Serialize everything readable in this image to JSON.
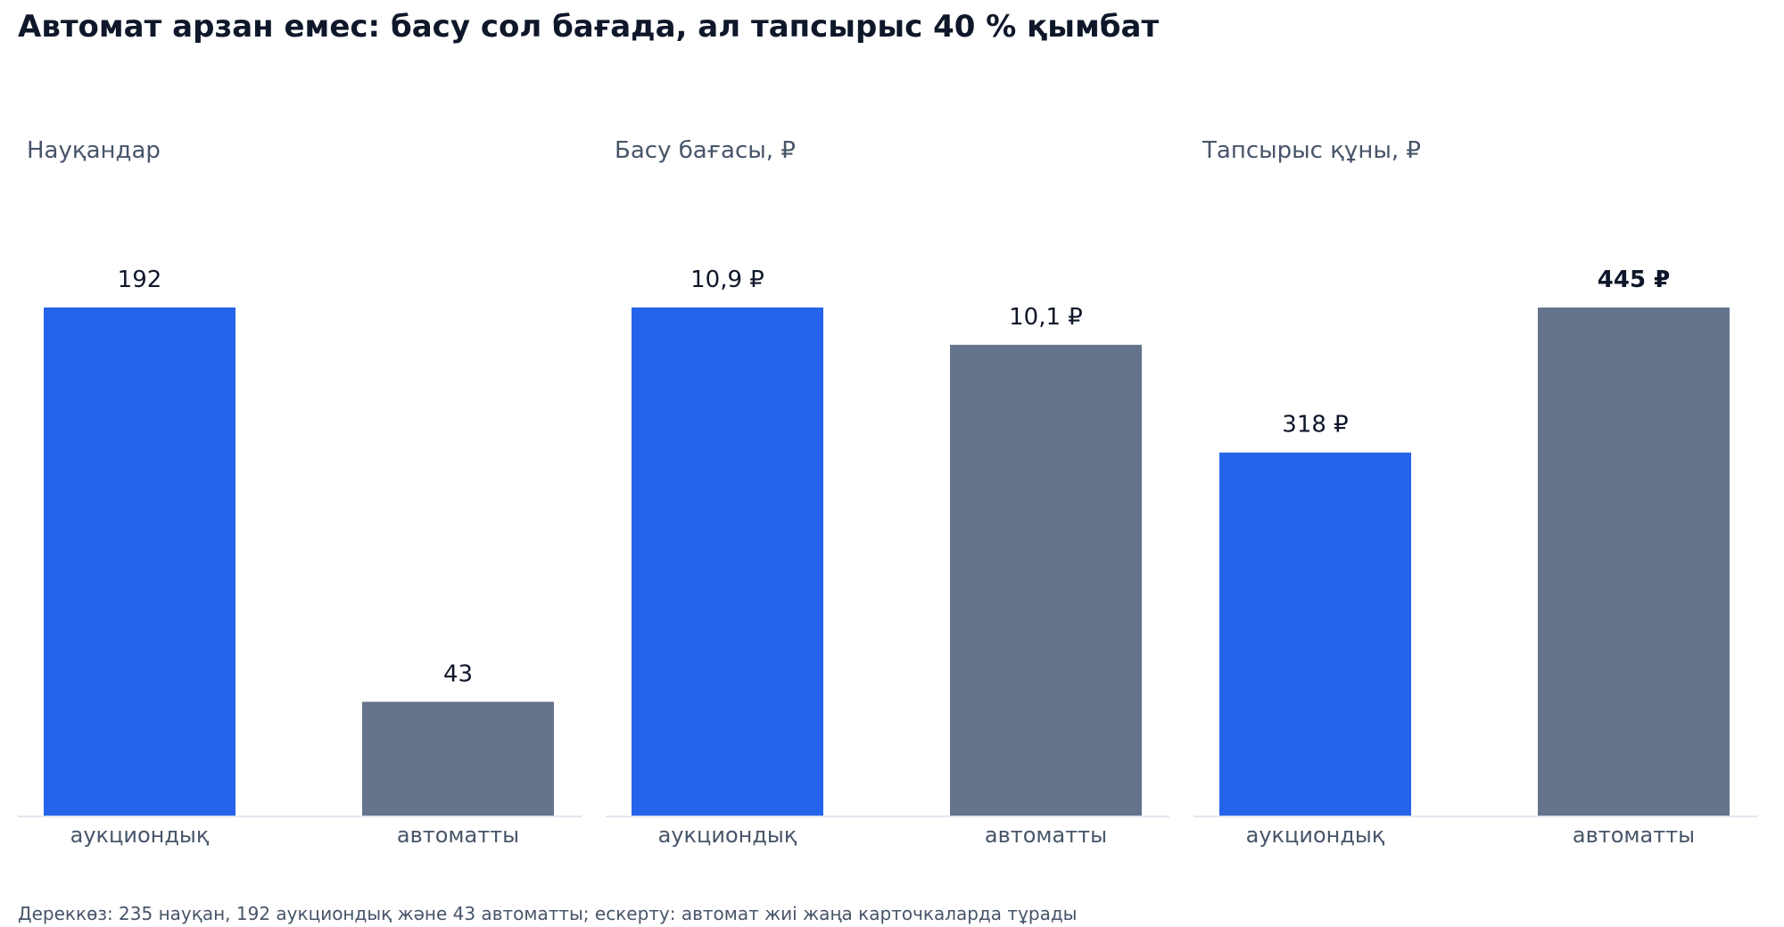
{
  "title": "Автомат арзан емес: басу сол бағада, ал тапсырыс 40 % қымбат",
  "footnote": "Дереккөз: 235 науқан, 192 аукциондық және 43 автоматты; ескерту: автомат жиі жаңа карточкаларда тұрады",
  "colors": {
    "auction": "#2563eb",
    "auto": "#64748b",
    "axis": "#e2e8f0"
  },
  "chart_data": [
    {
      "type": "bar",
      "title": "Науқандар",
      "categories": [
        "аукциондық",
        "автоматты"
      ],
      "values": [
        192,
        43
      ],
      "value_labels": [
        "192",
        "43"
      ],
      "highlight_index": null,
      "ylim": [
        0,
        192
      ]
    },
    {
      "type": "bar",
      "title": "Басу бағасы, ₽",
      "categories": [
        "аукциондық",
        "автоматты"
      ],
      "values": [
        10.9,
        10.1
      ],
      "value_labels": [
        "10,9 ₽",
        "10,1 ₽"
      ],
      "highlight_index": null,
      "ylim": [
        0,
        10.9
      ]
    },
    {
      "type": "bar",
      "title": "Тапсырыс құны, ₽",
      "categories": [
        "аукциондық",
        "автоматты"
      ],
      "values": [
        318,
        445
      ],
      "value_labels": [
        "318 ₽",
        "445 ₽"
      ],
      "highlight_index": 1,
      "ylim": [
        0,
        445
      ]
    }
  ]
}
